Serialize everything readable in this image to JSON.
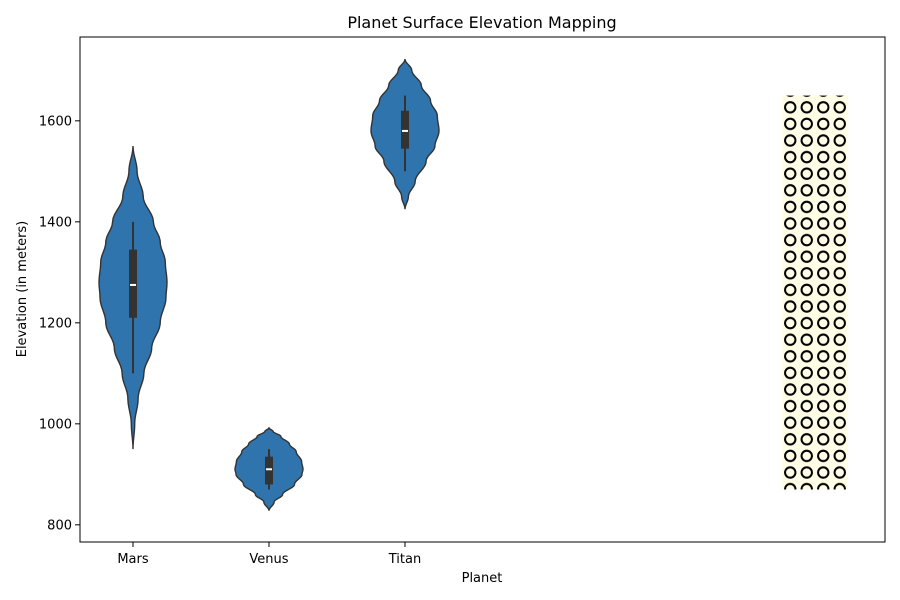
{
  "chart_data": {
    "type": "violin",
    "title": "Planet Surface Elevation Mapping",
    "xlabel": "Planet",
    "ylabel": "Elevation (in meters)",
    "categories": [
      "Mars",
      "Venus",
      "Titan"
    ],
    "y_ticks": [
      800,
      1000,
      1200,
      1400,
      1600
    ],
    "ylim": [
      766,
      1766
    ],
    "grid": false,
    "colors": {
      "violin": "#2f74ad",
      "outline": "#333333",
      "hatch_fill": "#fffde6",
      "hatch_stroke": "#000000"
    },
    "series": [
      {
        "category": "Mars",
        "min": 1100,
        "q1": 1210,
        "median": 1275,
        "q3": 1345,
        "max": 1400,
        "kde_min": 950,
        "kde_max": 1550,
        "profile": [
          [
            950,
            0.0
          ],
          [
            1000,
            0.05
          ],
          [
            1050,
            0.15
          ],
          [
            1100,
            0.32
          ],
          [
            1150,
            0.55
          ],
          [
            1200,
            0.8
          ],
          [
            1250,
            0.97
          ],
          [
            1280,
            1.0
          ],
          [
            1320,
            0.95
          ],
          [
            1360,
            0.8
          ],
          [
            1400,
            0.6
          ],
          [
            1450,
            0.3
          ],
          [
            1500,
            0.12
          ],
          [
            1550,
            0.0
          ]
        ]
      },
      {
        "category": "Venus",
        "min": 870,
        "q1": 880,
        "median": 910,
        "q3": 935,
        "max": 950,
        "kde_min": 828,
        "kde_max": 992,
        "profile": [
          [
            828,
            0.0
          ],
          [
            845,
            0.15
          ],
          [
            860,
            0.4
          ],
          [
            880,
            0.75
          ],
          [
            900,
            0.97
          ],
          [
            910,
            1.0
          ],
          [
            925,
            0.96
          ],
          [
            945,
            0.8
          ],
          [
            960,
            0.6
          ],
          [
            975,
            0.35
          ],
          [
            985,
            0.12
          ],
          [
            992,
            0.0
          ]
        ]
      },
      {
        "category": "Titan",
        "min": 1500,
        "q1": 1545,
        "median": 1580,
        "q3": 1620,
        "max": 1650,
        "kde_min": 1425,
        "kde_max": 1722,
        "profile": [
          [
            1425,
            0.0
          ],
          [
            1450,
            0.1
          ],
          [
            1480,
            0.3
          ],
          [
            1520,
            0.62
          ],
          [
            1550,
            0.88
          ],
          [
            1580,
            1.0
          ],
          [
            1610,
            0.95
          ],
          [
            1640,
            0.75
          ],
          [
            1670,
            0.48
          ],
          [
            1700,
            0.2
          ],
          [
            1722,
            0.0
          ]
        ]
      }
    ],
    "hatched_region": {
      "y_range": [
        870,
        1650
      ],
      "pattern": "circles"
    }
  }
}
